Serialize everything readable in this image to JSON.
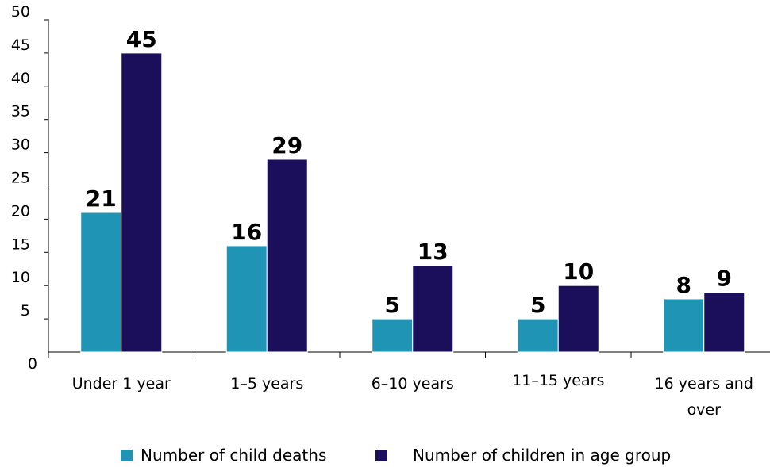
{
  "chart_data": {
    "type": "bar",
    "categories": [
      "Under 1 year",
      "1–5 years",
      "6–10 years",
      "11–15 years",
      "16 years and over"
    ],
    "category_lines": [
      [
        "Under 1 year"
      ],
      [
        "1–5 years"
      ],
      [
        "6–10 years"
      ],
      [
        "11–15 years"
      ],
      [
        "16 years and",
        "over"
      ]
    ],
    "series": [
      {
        "name": "Number of child deaths",
        "values": [
          21,
          16,
          5,
          5,
          8
        ],
        "color": "#2094b5"
      },
      {
        "name": "Number of children in age group",
        "values": [
          45,
          29,
          13,
          10,
          9
        ],
        "color": "#1b0f5c"
      }
    ],
    "ylim": [
      0,
      50
    ],
    "yticks": [
      0,
      5,
      10,
      15,
      20,
      25,
      30,
      35,
      40,
      45,
      50
    ],
    "grid": false,
    "legend_position": "bottom"
  }
}
